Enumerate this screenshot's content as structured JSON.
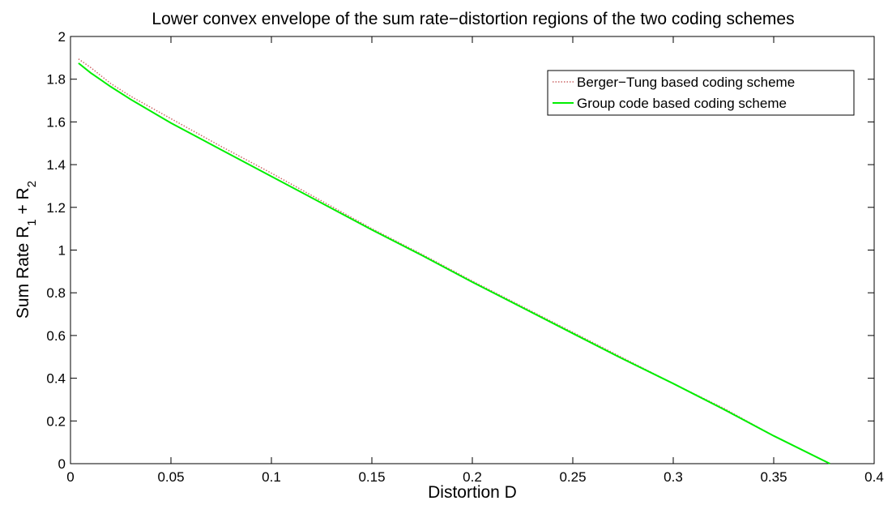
{
  "chart_data": {
    "type": "line",
    "title": "Lower convex envelope of the sum rate−distortion regions of the two coding schemes",
    "xlabel": "Distortion D",
    "ylabel": {
      "prefix": "Sum Rate  R",
      "sub1": "1",
      "mid": " + R",
      "sub2": "2"
    },
    "xlim": [
      0,
      0.4
    ],
    "ylim": [
      0,
      2
    ],
    "xticks": [
      0,
      0.05,
      0.1,
      0.15,
      0.2,
      0.25,
      0.3,
      0.35,
      0.4
    ],
    "xtick_labels": [
      "0",
      "0.05",
      "0.1",
      "0.15",
      "0.2",
      "0.25",
      "0.3",
      "0.35",
      "0.4"
    ],
    "yticks": [
      0,
      0.2,
      0.4,
      0.6,
      0.8,
      1,
      1.2,
      1.4,
      1.6,
      1.8,
      2
    ],
    "ytick_labels": [
      "0",
      "0.2",
      "0.4",
      "0.6",
      "0.8",
      "1",
      "1.2",
      "1.4",
      "1.6",
      "1.8",
      "2"
    ],
    "grid": false,
    "legend_position": "top-right",
    "series": [
      {
        "name": "Berger−Tung based coding scheme",
        "color": "#cc6666",
        "style": "dotted",
        "x": [
          0.004,
          0.01,
          0.02,
          0.03,
          0.05,
          0.075,
          0.1,
          0.125,
          0.15,
          0.175,
          0.2,
          0.225,
          0.25,
          0.275,
          0.3,
          0.325,
          0.35,
          0.378
        ],
        "y": [
          1.895,
          1.855,
          1.78,
          1.72,
          1.615,
          1.485,
          1.36,
          1.23,
          1.1,
          0.98,
          0.855,
          0.735,
          0.615,
          0.495,
          0.375,
          0.26,
          0.13,
          0.0
        ]
      },
      {
        "name": "Group code based coding scheme",
        "color": "#00ee00",
        "style": "solid",
        "x": [
          0.004,
          0.01,
          0.02,
          0.03,
          0.05,
          0.075,
          0.1,
          0.125,
          0.15,
          0.175,
          0.2,
          0.225,
          0.25,
          0.275,
          0.3,
          0.325,
          0.35,
          0.378
        ],
        "y": [
          1.875,
          1.83,
          1.765,
          1.705,
          1.595,
          1.47,
          1.345,
          1.22,
          1.095,
          0.975,
          0.85,
          0.73,
          0.61,
          0.49,
          0.375,
          0.255,
          0.13,
          0.0
        ]
      }
    ]
  }
}
